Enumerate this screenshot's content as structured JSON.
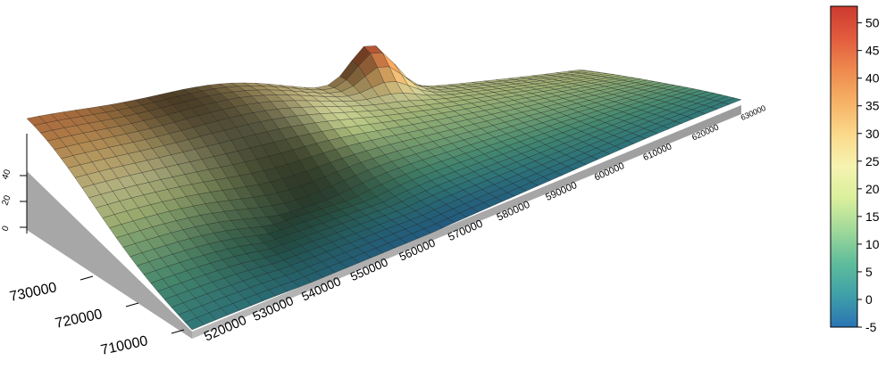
{
  "chart_data": {
    "type": "surface-3d",
    "x_ticks": [
      "520000",
      "530000",
      "540000",
      "550000",
      "560000",
      "570000",
      "580000",
      "590000",
      "600000",
      "610000",
      "620000",
      "630000"
    ],
    "y_ticks": [
      "710000",
      "720000",
      "730000"
    ],
    "z_ticks": [
      "0",
      "20",
      "40"
    ],
    "colorbar": {
      "ticks": [
        "-5",
        "0",
        "5",
        "10",
        "15",
        "20",
        "25",
        "30",
        "35",
        "40",
        "45",
        "50"
      ],
      "range": [
        -5,
        53
      ],
      "colors": [
        "#2b74b4",
        "#3fa0a8",
        "#5fbd9b",
        "#9fd89a",
        "#d9ef9c",
        "#f5f3b0",
        "#fbd98b",
        "#f6b266",
        "#ee8a4e",
        "#e25c3e",
        "#cc3a2e"
      ]
    }
  }
}
